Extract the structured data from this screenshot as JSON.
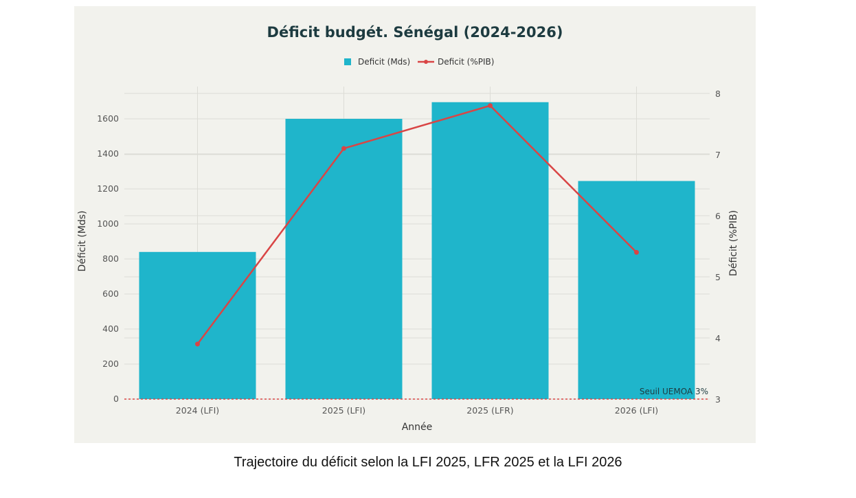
{
  "chart_data": {
    "type": "bar+line",
    "title": "Déficit budgét. Sénégal (2024-2026)",
    "xlabel": "Année",
    "ylabel": "Déficit (Mds)",
    "y2label": "Déficit (%PIB)",
    "categories": [
      "2024 (LFI)",
      "2025 (LFI)",
      "2025 (LFR)",
      "2026 (LFI)"
    ],
    "series": [
      {
        "name": "Deficit (Mds)",
        "type": "bar",
        "axis": "left",
        "color": "#1fb5cb",
        "values": [
          840,
          1600,
          1695,
          1245
        ]
      },
      {
        "name": "Deficit (%PIB)",
        "type": "line",
        "axis": "right",
        "color": "#d94545",
        "values": [
          3.9,
          7.1,
          7.8,
          5.4
        ]
      }
    ],
    "ylim": [
      0,
      1745
    ],
    "yticks": [
      0,
      200,
      400,
      600,
      800,
      1000,
      1200,
      1400,
      1600
    ],
    "y2lim": [
      3,
      8
    ],
    "y2ticks": [
      3,
      4,
      5,
      6,
      7,
      8
    ],
    "grid": true,
    "legend": "top-center",
    "annotation": {
      "text": "Seuil UEMOA 3%",
      "y2": 3,
      "color": "#d94545"
    }
  },
  "caption": "Trajectoire du déficit selon la LFI 2025, LFR 2025 et la LFI 2026"
}
